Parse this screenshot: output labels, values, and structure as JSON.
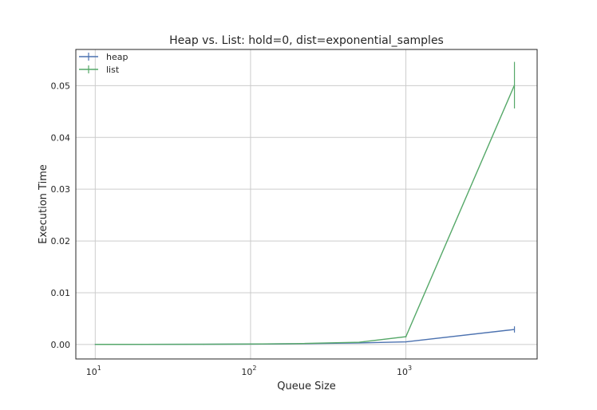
{
  "chart_data": {
    "type": "line",
    "title": "Heap vs. List: hold=0, dist=exponential_samples",
    "xlabel": "Queue Size",
    "ylabel": "Execution Time",
    "xscale": "log",
    "xlim": [
      7.5,
      7000
    ],
    "ylim": [
      -0.0028,
      0.057
    ],
    "xticks": [
      {
        "value": 10,
        "base": "10",
        "exp": "1"
      },
      {
        "value": 100,
        "base": "10",
        "exp": "2"
      },
      {
        "value": 1000,
        "base": "10",
        "exp": "3"
      }
    ],
    "yticks": [
      {
        "value": 0.0,
        "label": "0.00"
      },
      {
        "value": 0.01,
        "label": "0.01"
      },
      {
        "value": 0.02,
        "label": "0.02"
      },
      {
        "value": 0.03,
        "label": "0.03"
      },
      {
        "value": 0.04,
        "label": "0.04"
      },
      {
        "value": 0.05,
        "label": "0.05"
      }
    ],
    "grid": true,
    "legend_position": "top-left",
    "series": [
      {
        "name": "heap",
        "color": "#4c72b0",
        "x": [
          10,
          20,
          50,
          100,
          200,
          500,
          1000,
          5000
        ],
        "y": [
          1e-05,
          2e-05,
          4e-05,
          7e-05,
          0.00014,
          0.0003,
          0.0005,
          0.0029
        ],
        "err": [
          0,
          0,
          0,
          0,
          0,
          0,
          3e-05,
          0.0006
        ]
      },
      {
        "name": "list",
        "color": "#55a868",
        "x": [
          10,
          20,
          50,
          100,
          200,
          500,
          1000,
          5000
        ],
        "y": [
          1e-05,
          2e-05,
          4e-05,
          8e-05,
          0.00016,
          0.00042,
          0.0015,
          0.0501
        ],
        "err": [
          0,
          0,
          0,
          0,
          0,
          0,
          0.00015,
          0.0045
        ]
      }
    ]
  }
}
